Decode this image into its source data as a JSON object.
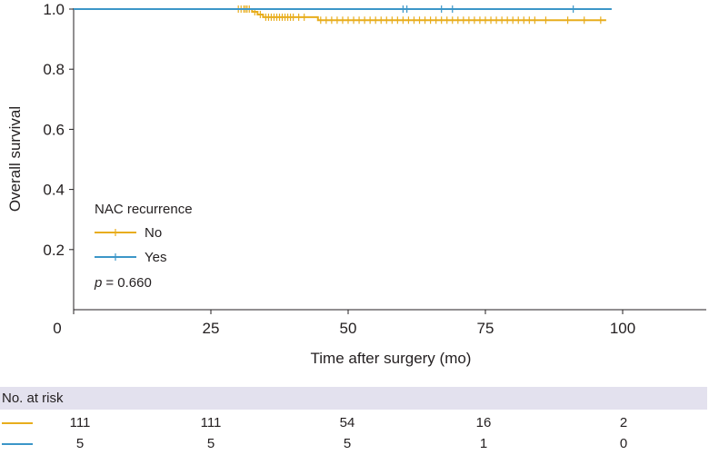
{
  "chart_data": {
    "type": "line",
    "subtype": "kaplan-meier",
    "xlabel": "Time after surgery (mo)",
    "ylabel": "Overall survival",
    "xlim": [
      0,
      112
    ],
    "ylim": [
      0,
      1.0
    ],
    "x_ticks": [
      0,
      25,
      50,
      75,
      100
    ],
    "x_tick_labels": [
      "0",
      "25",
      "50",
      "75",
      "100"
    ],
    "y_ticks": [
      0.2,
      0.4,
      0.6,
      0.8,
      1.0
    ],
    "y_tick_labels": [
      "0.2",
      "0.4",
      "0.6",
      "0.8",
      "1.0"
    ],
    "legend": {
      "title": "NAC recurrence",
      "placement": "lower-left",
      "p_label": "p",
      "p_value": "= 0.660"
    },
    "series": [
      {
        "name": "No",
        "color": "#e8ad1d",
        "steps": [
          [
            0,
            1.0
          ],
          [
            32.5,
            0.991
          ],
          [
            33.5,
            0.982
          ],
          [
            34.5,
            0.973
          ],
          [
            44.5,
            0.963
          ],
          [
            97,
            0.963
          ]
        ],
        "censor_times": [
          30,
          30.5,
          31,
          31.3,
          31.6,
          32,
          33,
          34,
          35,
          35.5,
          36,
          36.5,
          37,
          37.5,
          38,
          38.5,
          39,
          39.5,
          40,
          41,
          42,
          45,
          46,
          47,
          48,
          49,
          50,
          51,
          52,
          53,
          54,
          55,
          56,
          57,
          58,
          59,
          60,
          61,
          62,
          63,
          64,
          65,
          66,
          67,
          68,
          69,
          70,
          71,
          72,
          73,
          74,
          75,
          76,
          77,
          78,
          79,
          80,
          81,
          82,
          83,
          84,
          86,
          90,
          93,
          96
        ]
      },
      {
        "name": "Yes",
        "color": "#3c96c8",
        "steps": [
          [
            0,
            1.0
          ],
          [
            98,
            1.0
          ]
        ],
        "censor_times": [
          60,
          60.7,
          67,
          69,
          91
        ]
      }
    ],
    "risk_table": {
      "title": "No. at risk",
      "times": [
        0,
        25,
        50,
        75,
        100
      ],
      "rows": [
        {
          "name": "No",
          "color": "#e8ad1d",
          "values": [
            "111",
            "111",
            "54",
            "16",
            "2"
          ]
        },
        {
          "name": "Yes",
          "color": "#3c96c8",
          "values": [
            "5",
            "5",
            "5",
            "1",
            "0"
          ]
        }
      ]
    }
  }
}
